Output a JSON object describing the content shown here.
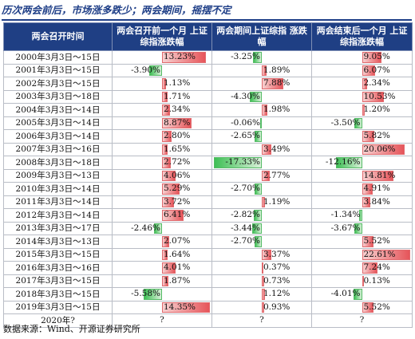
{
  "title": "历次两会前后，市场涨多跌少；两会期间，摇摆不定",
  "table": {
    "headers": [
      "两会召开时间",
      "两会召开前一个月 上证综指涨跌幅",
      "两会期间上证综指 涨跌幅",
      "两会结束后一个月 上证综指涨跌幅"
    ],
    "rows": [
      {
        "period": "2000年3月3日～15日",
        "before": "13.23%",
        "during": "-3.25%",
        "after": "9.05%",
        "before_v": 13.23,
        "during_v": -3.25,
        "after_v": 9.05
      },
      {
        "period": "2001年3月3日～15日",
        "before": "-3.90%",
        "during": "1.89%",
        "after": "6.07%",
        "before_v": -3.9,
        "during_v": 1.89,
        "after_v": 6.07
      },
      {
        "period": "2002年3月3日～15日",
        "before": "1.13%",
        "during": "7.88%",
        "after": "2.34%",
        "before_v": 1.13,
        "during_v": 7.88,
        "after_v": 2.34
      },
      {
        "period": "2003年3月3日～18日",
        "before": "1.71%",
        "during": "-4.30%",
        "after": "10.53%",
        "before_v": 1.71,
        "during_v": -4.3,
        "after_v": 10.53
      },
      {
        "period": "2004年3月3日～14日",
        "before": "2.34%",
        "during": "1.98%",
        "after": "1.20%",
        "before_v": 2.34,
        "during_v": 1.98,
        "after_v": 1.2
      },
      {
        "period": "2005年3月3日～14日",
        "before": "8.87%",
        "during": "-0.06%",
        "after": "-3.50%",
        "before_v": 8.87,
        "during_v": -0.06,
        "after_v": -3.5
      },
      {
        "period": "2006年3月3日～14日",
        "before": "2.80%",
        "during": "-2.65%",
        "after": "5.82%",
        "before_v": 2.8,
        "during_v": -2.65,
        "after_v": 5.82
      },
      {
        "period": "2007年3月3日～16日",
        "before": "1.65%",
        "during": "3.49%",
        "after": "20.06%",
        "before_v": 1.65,
        "during_v": 3.49,
        "after_v": 20.06
      },
      {
        "period": "2008年3月3日～18日",
        "before": "2.72%",
        "during": "-17.33%",
        "after": "-12.16%",
        "before_v": 2.72,
        "during_v": -17.33,
        "after_v": -12.16
      },
      {
        "period": "2009年3月3日～13日",
        "before": "4.06%",
        "during": "2.77%",
        "after": "14.81%",
        "before_v": 4.06,
        "during_v": 2.77,
        "after_v": 14.81
      },
      {
        "period": "2010年3月3日～14日",
        "before": "5.29%",
        "during": "-2.70%",
        "after": "4.91%",
        "before_v": 5.29,
        "during_v": -2.7,
        "after_v": 4.91
      },
      {
        "period": "2011年3月3日～14日",
        "before": "3.72%",
        "during": "1.19%",
        "after": "3.84%",
        "before_v": 3.72,
        "during_v": 1.19,
        "after_v": 3.84
      },
      {
        "period": "2012年3月3日～14日",
        "before": "6.41%",
        "during": "-2.82%",
        "after": "-1.34%",
        "before_v": 6.41,
        "during_v": -2.82,
        "after_v": -1.34
      },
      {
        "period": "2013年3月3日～17日",
        "before": "-2.46%",
        "during": "-3.44%",
        "after": "-3.67%",
        "before_v": -2.46,
        "during_v": -3.44,
        "after_v": -3.67
      },
      {
        "period": "2014年3月3日～13日",
        "before": "2.07%",
        "during": "-2.70%",
        "after": "5.52%",
        "before_v": 2.07,
        "during_v": -2.7,
        "after_v": 5.52
      },
      {
        "period": "2015年3月3日～15日",
        "before": "1.64%",
        "during": "3.37%",
        "after": "22.61%",
        "before_v": 1.64,
        "during_v": 3.37,
        "after_v": 22.61
      },
      {
        "period": "2016年3月3日～16日",
        "before": "4.01%",
        "during": "0.37%",
        "after": "7.24%",
        "before_v": 4.01,
        "during_v": 0.37,
        "after_v": 7.24
      },
      {
        "period": "2017年3月3日～15日",
        "before": "1.87%",
        "during": "0.73%",
        "after": "0.13%",
        "before_v": 1.87,
        "during_v": 0.73,
        "after_v": 0.13
      },
      {
        "period": "2018年3月3日～15日",
        "before": "-5.58%",
        "during": "1.12%",
        "after": "-4.01%",
        "before_v": -5.58,
        "during_v": 1.12,
        "after_v": -4.01
      },
      {
        "period": "2019年3月3日～15日",
        "before": "14.35%",
        "during": "0.93%",
        "after": "5.52%",
        "before_v": 14.35,
        "during_v": 0.93,
        "after_v": 5.52
      },
      {
        "period": "2020年?",
        "before": "?",
        "during": "?",
        "after": "?",
        "before_v": null,
        "during_v": null,
        "after_v": null
      }
    ]
  },
  "colors": {
    "header_bg": "#1f3f84",
    "title": "#1e3e87",
    "positive_bar": "#e6555a",
    "negative_bar": "#3fbf55"
  },
  "source": "数据来源：Wind、开源证券研究所"
}
